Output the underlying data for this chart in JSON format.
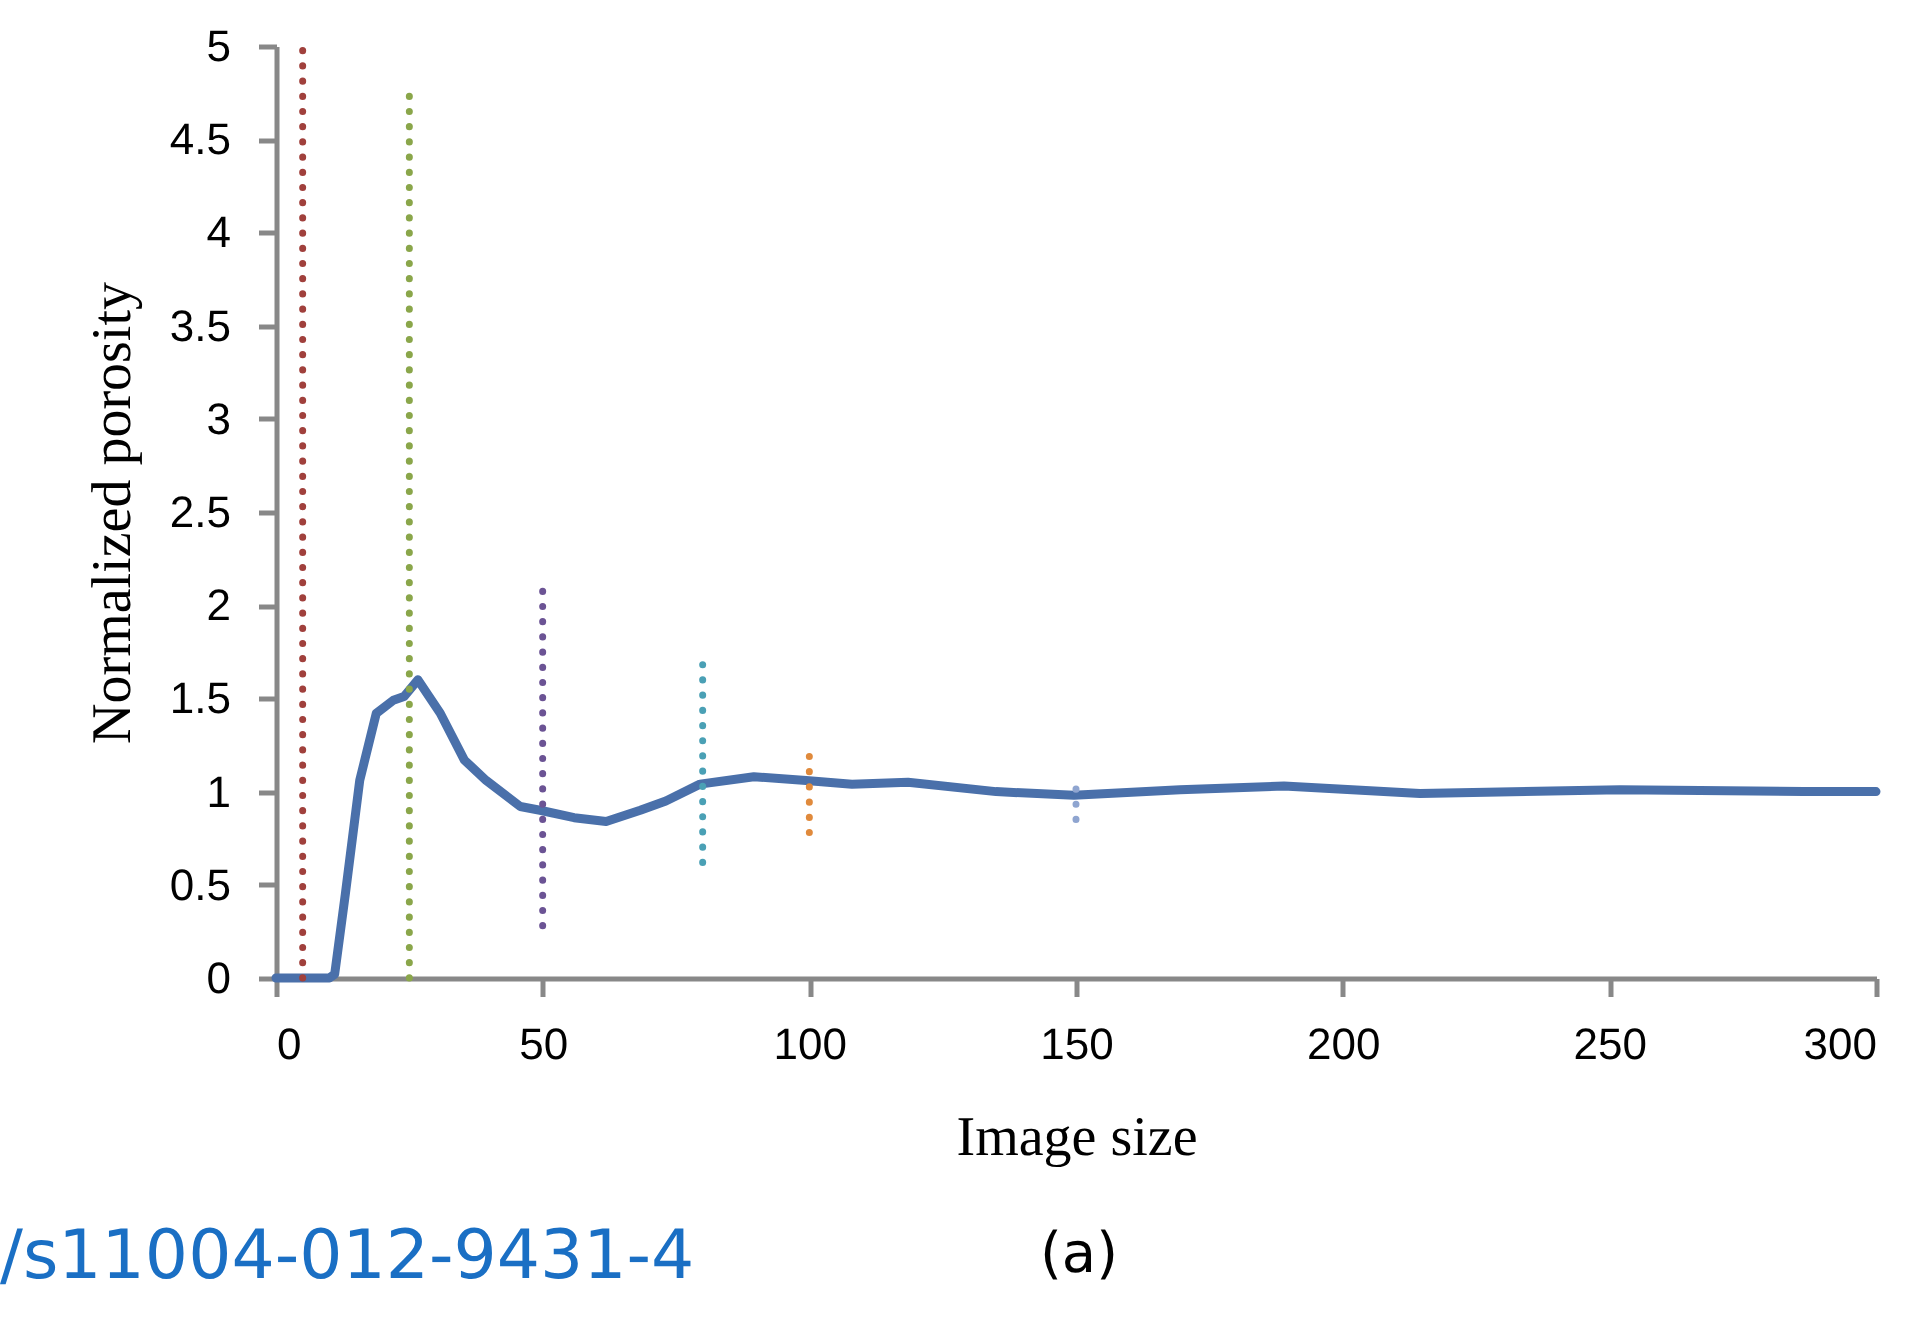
{
  "chart_data": {
    "type": "line",
    "xlabel": "Image size",
    "ylabel": "Normalized porosity",
    "xlim": [
      0,
      300
    ],
    "ylim": [
      0,
      5
    ],
    "xticks": [
      0,
      50,
      100,
      150,
      200,
      250,
      300
    ],
    "yticks": [
      0,
      0.5,
      1,
      1.5,
      2,
      2.5,
      3,
      3.5,
      4,
      4.5,
      5
    ],
    "line_style": "solid",
    "marker": "none",
    "series": [
      {
        "color": "#4a70aa",
        "x": [
          0,
          5,
          10,
          11,
          13,
          15.7,
          18.8,
          22,
          24,
          26.6,
          30.8,
          35.3,
          39.4,
          45.8,
          49.5,
          55.9,
          61.9,
          68.3,
          73.1,
          79.5,
          89.6,
          99.4,
          108,
          118.5,
          135,
          149.6,
          169.5,
          189,
          214.5,
          252,
          286.5,
          300
        ],
        "values": [
          0,
          0,
          0,
          0.02,
          0.45,
          1.06,
          1.42,
          1.49,
          1.51,
          1.6,
          1.42,
          1.17,
          1.06,
          0.92,
          0.9,
          0.86,
          0.84,
          0.9,
          0.95,
          1.04,
          1.08,
          1.06,
          1.04,
          1.05,
          1,
          0.98,
          1.01,
          1.03,
          0.99,
          1.01,
          1,
          1
        ]
      },
      {
        "color": "#a0403c",
        "line_style": "dotted",
        "x": [
          5,
          5
        ],
        "values": [
          0,
          5
        ]
      },
      {
        "color": "#8aa64a",
        "line_style": "dotted",
        "x": [
          25,
          25
        ],
        "values": [
          0,
          4.78
        ]
      },
      {
        "color": "#6b5394",
        "line_style": "dotted",
        "x": [
          50,
          50
        ],
        "values": [
          0.28,
          2.08
        ]
      },
      {
        "color": "#4aa0b5",
        "line_style": "dotted",
        "x": [
          80,
          80
        ],
        "values": [
          0.62,
          1.75
        ]
      },
      {
        "color": "#e08a3c",
        "line_style": "dotted",
        "x": [
          100,
          100
        ],
        "values": [
          0.78,
          1.2
        ]
      },
      {
        "color": "#8fa5d0",
        "line_style": "dotted",
        "x": [
          150,
          150
        ],
        "values": [
          0.85,
          1.07
        ]
      }
    ],
    "annotations": [
      "/s11004-012-9431-4",
      "(a)"
    ]
  }
}
